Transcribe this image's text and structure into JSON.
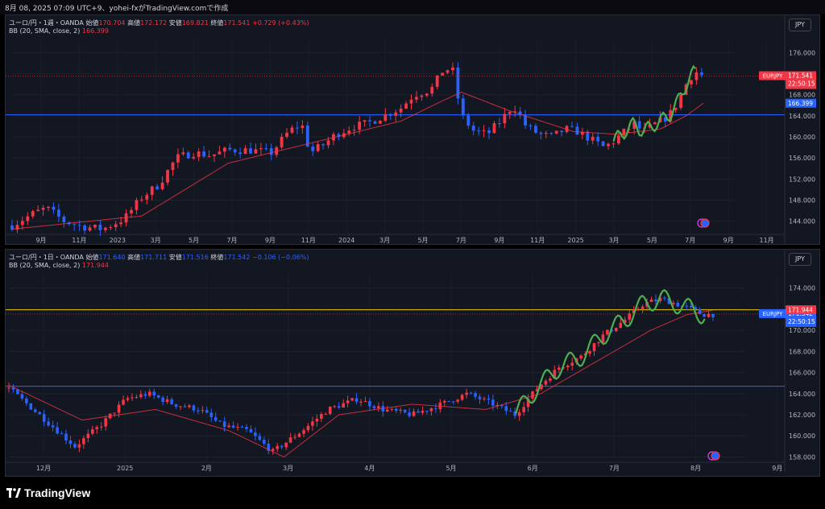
{
  "header": {
    "text": "8月 08, 2025 07:09 UTC+9、yohei-fxがTradingView.comで作成"
  },
  "footer": {
    "brand": "TradingView"
  },
  "panes": [
    {
      "legend": {
        "symbol": "ユーロ/円・1週・OANDA",
        "open_label": "始値",
        "open": "170.704",
        "high_label": "高値",
        "high": "172.172",
        "low_label": "安値",
        "low": "169.821",
        "close_label": "終値",
        "close": "171.541",
        "change": "+0.729 (+0.43%)",
        "bb_label": "BB (20, SMA, close, 2)",
        "bb_value": "166.399"
      },
      "currency": "JPY",
      "price_label": {
        "symbol": "EURJPY",
        "price": "171.541",
        "time": "22:50:15"
      },
      "bb_label": "166.399",
      "colors": {
        "up": "#f23645",
        "down": "#2962ff",
        "bb": "#f23645",
        "hline": "#2962ff"
      }
    },
    {
      "legend": {
        "symbol": "ユーロ/円・1日・OANDA",
        "open_label": "始値",
        "open": "171.640",
        "high_label": "高値",
        "high": "171.711",
        "low_label": "安値",
        "low": "171.516",
        "close_label": "終値",
        "close": "171.542",
        "change": "−0.106 (−0.06%)",
        "bb_label": "BB (20, SMA, close, 2)",
        "bb_value": "171.944"
      },
      "currency": "JPY",
      "price_label": {
        "symbol": "EURJPY",
        "price": "171.542",
        "time": "22:50:15"
      },
      "bb_label": "171.944",
      "colors": {
        "up": "#f23645",
        "down": "#2962ff",
        "bb": "#f23645",
        "hline": "#2962ff",
        "yline": "#e5c700"
      }
    }
  ],
  "chart_data": [
    {
      "type": "candlestick",
      "timeframe": "1週",
      "y_ticks": [
        144,
        148,
        152,
        156,
        160,
        164,
        168,
        172,
        176
      ],
      "y_tick_labels": [
        "144.000",
        "148.000",
        "152.000",
        "156.000",
        "160.000",
        "164.000",
        "168.000",
        "172.000",
        "176.000"
      ],
      "ylim": [
        141.5,
        178.5
      ],
      "x_tick_labels": [
        "9月",
        "11月",
        "2023",
        "3月",
        "5月",
        "7月",
        "9月",
        "11月",
        "2024",
        "3月",
        "5月",
        "7月",
        "9月",
        "11月",
        "2025",
        "3月",
        "5月",
        "7月",
        "9月",
        "11月"
      ],
      "horizontal_line": 164.2,
      "current_price": 171.541,
      "bb_current": 166.399,
      "series_close": [
        [
          0,
          143.2
        ],
        [
          5,
          145.5
        ],
        [
          8,
          146.5
        ],
        [
          12,
          144.0
        ],
        [
          16,
          143.0
        ],
        [
          21,
          142.5
        ],
        [
          26,
          144.5
        ],
        [
          30,
          148.5
        ],
        [
          34,
          151.0
        ],
        [
          38,
          156.0
        ],
        [
          42,
          157.0
        ],
        [
          46,
          156.5
        ],
        [
          50,
          157.5
        ],
        [
          55,
          157.5
        ],
        [
          60,
          157.0
        ],
        [
          64,
          161.0
        ],
        [
          67,
          162.5
        ],
        [
          69,
          157.0
        ],
        [
          72,
          158.5
        ],
        [
          75,
          160.5
        ],
        [
          79,
          162.0
        ],
        [
          82,
          162.5
        ],
        [
          86,
          164.0
        ],
        [
          90,
          165.5
        ],
        [
          93,
          168.0
        ],
        [
          97,
          169.0
        ],
        [
          100,
          173.0
        ],
        [
          102,
          172.5
        ],
        [
          104,
          164.0
        ],
        [
          107,
          161.0
        ],
        [
          110,
          160.5
        ],
        [
          113,
          163.0
        ],
        [
          116,
          166.0
        ],
        [
          119,
          162.0
        ],
        [
          122,
          160.5
        ],
        [
          125,
          160.0
        ],
        [
          128,
          161.5
        ],
        [
          131,
          161.0
        ],
        [
          134,
          159.5
        ],
        [
          137,
          158.0
        ],
        [
          139,
          159.0
        ],
        [
          141,
          160.5
        ],
        [
          144,
          162.5
        ],
        [
          146,
          161.0
        ],
        [
          149,
          162.5
        ],
        [
          152,
          164.0
        ],
        [
          154,
          166.5
        ],
        [
          156,
          170.0
        ],
        [
          158,
          172.5
        ],
        [
          160,
          171.5
        ]
      ],
      "bb_basis": [
        [
          0,
          142.5
        ],
        [
          30,
          145.0
        ],
        [
          50,
          155.0
        ],
        [
          70,
          159.0
        ],
        [
          90,
          163.0
        ],
        [
          100,
          167.0
        ],
        [
          104,
          168.5
        ],
        [
          115,
          165.0
        ],
        [
          130,
          161.0
        ],
        [
          140,
          160.5
        ],
        [
          150,
          161.5
        ],
        [
          156,
          164.0
        ],
        [
          160,
          166.4
        ]
      ]
    },
    {
      "type": "candlestick",
      "timeframe": "1日",
      "y_ticks": [
        158,
        160,
        162,
        164,
        166,
        168,
        170,
        172,
        174
      ],
      "y_tick_labels": [
        "158.000",
        "160.000",
        "162.000",
        "164.000",
        "166.000",
        "168.000",
        "170.000",
        "172.000",
        "174.000"
      ],
      "ylim": [
        157.5,
        175.5
      ],
      "x_tick_labels": [
        "12月",
        "2025",
        "2月",
        "3月",
        "4月",
        "5月",
        "6月",
        "7月",
        "8月",
        "9月"
      ],
      "horizontal_line": 164.7,
      "yellow_line": 171.944,
      "current_price": 171.542,
      "bb_current": 171.944,
      "series_close": [
        [
          0,
          164.5
        ],
        [
          10,
          161.5
        ],
        [
          18,
          159.0
        ],
        [
          25,
          161.0
        ],
        [
          32,
          163.5
        ],
        [
          38,
          164.0
        ],
        [
          45,
          163.0
        ],
        [
          52,
          162.5
        ],
        [
          58,
          161.0
        ],
        [
          65,
          160.5
        ],
        [
          72,
          158.5
        ],
        [
          80,
          160.5
        ],
        [
          87,
          162.5
        ],
        [
          95,
          163.5
        ],
        [
          102,
          162.5
        ],
        [
          110,
          162.0
        ],
        [
          118,
          163.0
        ],
        [
          125,
          164.0
        ],
        [
          132,
          163.0
        ],
        [
          138,
          162.0
        ],
        [
          144,
          164.5
        ],
        [
          150,
          166.5
        ],
        [
          156,
          167.5
        ],
        [
          162,
          169.5
        ],
        [
          168,
          171.0
        ],
        [
          173,
          172.5
        ],
        [
          178,
          173.0
        ],
        [
          182,
          172.5
        ],
        [
          186,
          172.0
        ],
        [
          189,
          171.5
        ],
        [
          192,
          171.5
        ]
      ],
      "bb_basis": [
        [
          0,
          164.8
        ],
        [
          20,
          161.5
        ],
        [
          40,
          162.5
        ],
        [
          60,
          160.5
        ],
        [
          75,
          158.0
        ],
        [
          90,
          162.0
        ],
        [
          110,
          163.0
        ],
        [
          130,
          162.5
        ],
        [
          145,
          164.0
        ],
        [
          160,
          167.0
        ],
        [
          175,
          170.0
        ],
        [
          185,
          171.5
        ],
        [
          192,
          171.9
        ]
      ]
    }
  ]
}
